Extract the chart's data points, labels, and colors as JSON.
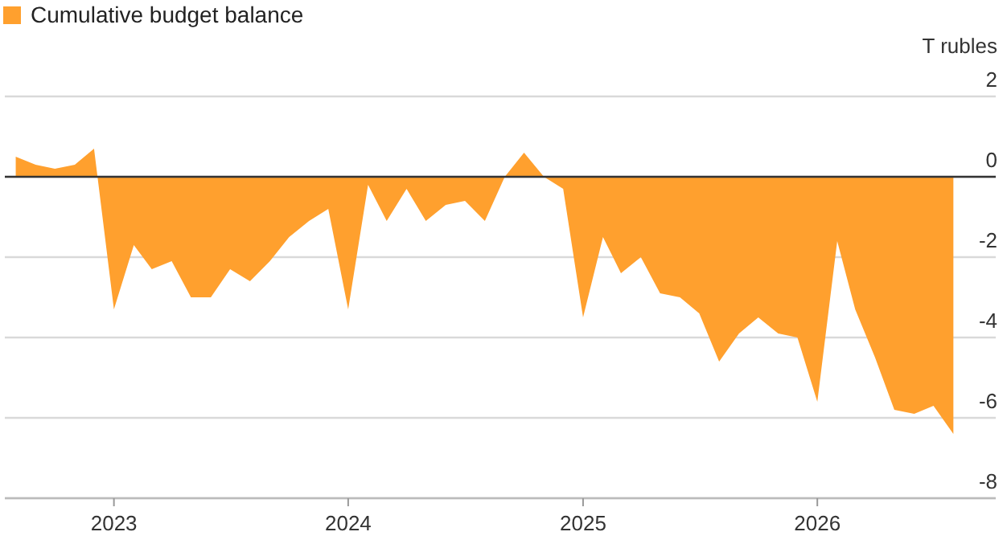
{
  "chart_data": {
    "type": "area",
    "ylabel": "T rubles",
    "legend": "top left",
    "grid": "y",
    "x": [
      "2022-08",
      "2022-09",
      "2022-10",
      "2022-11",
      "2022-12",
      "2023-01",
      "2023-02",
      "2023-03",
      "2023-04",
      "2023-05",
      "2023-06",
      "2023-07",
      "2023-08",
      "2023-09",
      "2023-10",
      "2023-11",
      "2023-12",
      "2024-01",
      "2024-02",
      "2024-03",
      "2024-04",
      "2024-05",
      "2024-06",
      "2024-07",
      "2024-08",
      "2024-09",
      "2024-10",
      "2024-11",
      "2024-12",
      "2025-01",
      "2025-02",
      "2025-03",
      "2025-04",
      "2025-05",
      "2025-06",
      "2025-07",
      "2025-08",
      "2025-09",
      "2025-10",
      "2025-11",
      "2025-12",
      "2026-01",
      "2026-02",
      "2026-03",
      "2026-04",
      "2026-05",
      "2026-06",
      "2026-07",
      "2026-08"
    ],
    "series": [
      {
        "name": "Cumulative budget balance",
        "color": "#ffa02e",
        "values": [
          0.5,
          0.3,
          0.2,
          0.3,
          0.7,
          -3.3,
          -1.7,
          -2.3,
          -2.1,
          -3.0,
          -3.0,
          -2.3,
          -2.6,
          -2.1,
          -1.5,
          -1.1,
          -0.8,
          -3.3,
          -0.2,
          -1.1,
          -0.3,
          -1.1,
          -0.7,
          -0.6,
          -1.1,
          0.0,
          0.6,
          0.0,
          -0.3,
          -3.5,
          -1.5,
          -2.4,
          -2.0,
          -2.9,
          -3.0,
          -3.4,
          -4.6,
          -3.9,
          -3.5,
          -3.9,
          -4.0,
          -5.6,
          -1.6,
          -3.3,
          -4.5,
          -5.8,
          -5.9,
          -5.7,
          -6.4
        ]
      }
    ],
    "xlim": [
      "2022-07-15",
      "2026-10-06"
    ],
    "xticks": [
      "2023",
      "2024",
      "2025",
      "2026"
    ],
    "ylim": [
      -8,
      2
    ],
    "yticks": [
      2,
      0,
      -2,
      -4,
      -6,
      -8
    ]
  }
}
